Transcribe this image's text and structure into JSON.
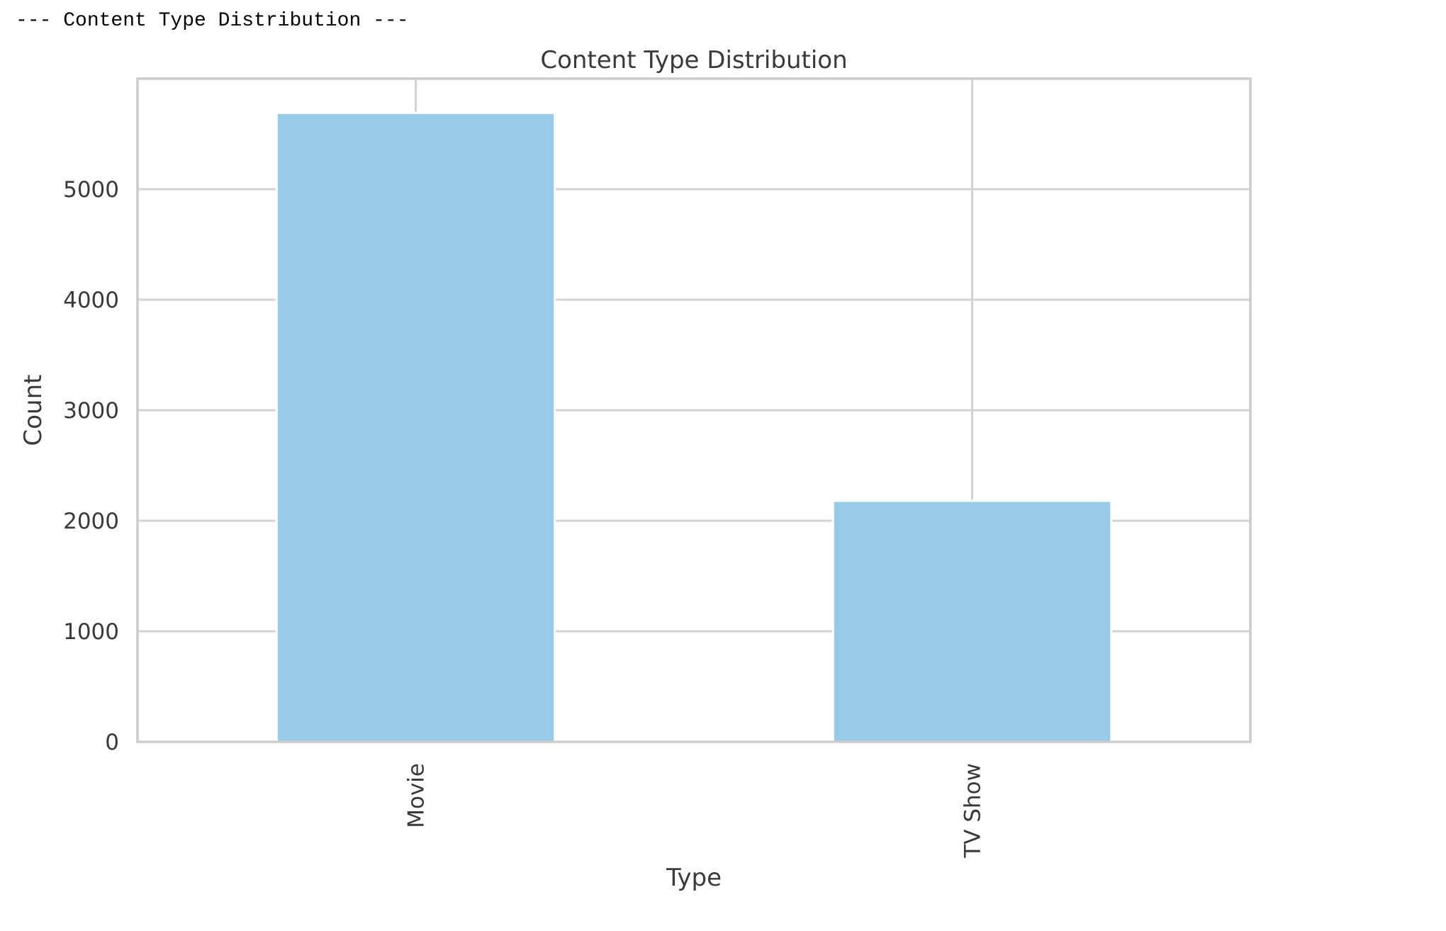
{
  "console": {
    "header_text": "--- Content Type Distribution ---"
  },
  "chart_data": {
    "type": "bar",
    "title": "Content Type Distribution",
    "xlabel": "Type",
    "ylabel": "Count",
    "categories": [
      "Movie",
      "TV Show"
    ],
    "values": [
      5690,
      2180
    ],
    "ylim": [
      0,
      6000
    ],
    "yticks": [
      0,
      1000,
      2000,
      3000,
      4000,
      5000
    ],
    "ytick_labels": [
      "0",
      "1000",
      "2000",
      "3000",
      "4000",
      "5000"
    ],
    "x_tick_rotation": "vertical",
    "grid": true,
    "legend": "none",
    "colors": {
      "bar": "#98cbe7",
      "grid": "#d3d3d3",
      "frame": "#cccccc",
      "text": "#3a3a3a"
    }
  }
}
